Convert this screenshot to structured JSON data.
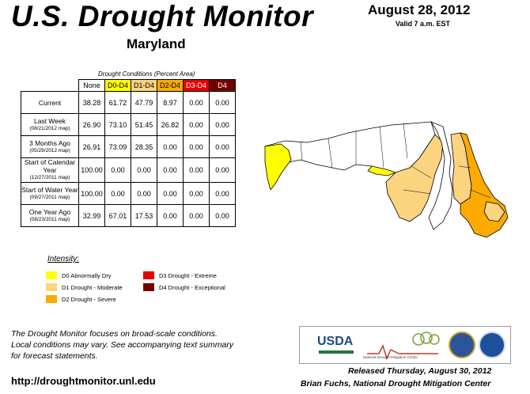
{
  "header": {
    "title": "U.S. Drought Monitor",
    "state": "Maryland",
    "date": "August 28, 2012",
    "valid": "Valid 7 a.m. EST"
  },
  "table": {
    "caption": "Drought Conditions (Percent Area)",
    "columns": [
      "None",
      "D0-D4",
      "D1-D4",
      "D2-D4",
      "D3-D4",
      "D4"
    ],
    "rows": [
      {
        "label": "Current",
        "sub": "",
        "values": [
          "38.28",
          "61.72",
          "47.79",
          "8.97",
          "0.00",
          "0.00"
        ]
      },
      {
        "label": "Last Week",
        "sub": "(08/21/2012 map)",
        "values": [
          "26.90",
          "73.10",
          "51.45",
          "26.82",
          "0.00",
          "0.00"
        ]
      },
      {
        "label": "3 Months Ago",
        "sub": "(05/29/2012 map)",
        "values": [
          "26.91",
          "73.09",
          "28.35",
          "0.00",
          "0.00",
          "0.00"
        ]
      },
      {
        "label": "Start of Calendar Year",
        "sub": "(12/27/2011 map)",
        "values": [
          "100.00",
          "0.00",
          "0.00",
          "0.00",
          "0.00",
          "0.00"
        ]
      },
      {
        "label": "Start of Water Year",
        "sub": "(09/27/2011 map)",
        "values": [
          "100.00",
          "0.00",
          "0.00",
          "0.00",
          "0.00",
          "0.00"
        ]
      },
      {
        "label": "One Year Ago",
        "sub": "(08/23/2011 map)",
        "values": [
          "32.99",
          "67.01",
          "17.53",
          "0.00",
          "0.00",
          "0.00"
        ]
      }
    ]
  },
  "legend": {
    "title": "Intensity:",
    "items": [
      {
        "label": "D0 Abnormally Dry",
        "color": "#ffff00"
      },
      {
        "label": "D1 Drought - Moderate",
        "color": "#fcd37f"
      },
      {
        "label": "D2 Drought - Severe",
        "color": "#ffaa00"
      },
      {
        "label": "D3 Drought - Extreme",
        "color": "#e60000"
      },
      {
        "label": "D4 Drought - Exceptional",
        "color": "#730000"
      }
    ]
  },
  "footer": {
    "note_line1": "The Drought Monitor focuses on broad-scale conditions.",
    "note_line2": "Local conditions may vary. See accompanying text summary",
    "note_line3": "for forecast statements.",
    "url": "http://droughtmonitor.unl.edu",
    "released": "Released Thursday, August 30, 2012",
    "author": "Brian Fuchs, National Drought Mitigation Center"
  },
  "logos": {
    "usda": "USDA",
    "ndmc_line1": "National",
    "ndmc_line2": "Drought Mitigation",
    "ndmc_line3": "Center"
  }
}
